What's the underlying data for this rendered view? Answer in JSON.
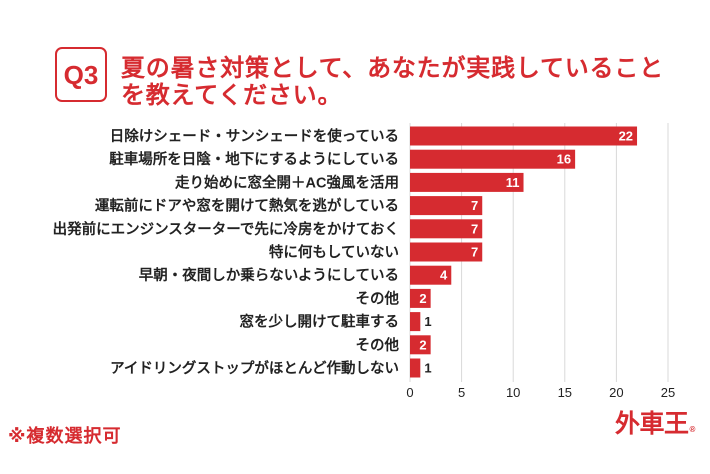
{
  "header": {
    "question_number": "Q3",
    "title_lines": [
      "夏の暑さ対策として、あなたが実践していること",
      "を教えてください。"
    ]
  },
  "chart_data": {
    "type": "bar",
    "orientation": "horizontal",
    "categories": [
      "日除けシェード・サンシェードを使っている",
      "駐車場所を日陰・地下にするようにしている",
      "走り始めに窓全開＋AC強風を活用",
      "運転前にドアや窓を開けて熱気を逃がしている",
      "出発前にエンジンスターターで先に冷房をかけておく",
      "特に何もしていない",
      "早朝・夜間しか乗らないようにしている",
      "その他",
      "窓を少し開けて駐車する",
      "その他",
      "アイドリングストップがほとんど作動しない"
    ],
    "values": [
      22,
      16,
      11,
      7,
      7,
      7,
      4,
      2,
      1,
      2,
      1
    ],
    "xlim": [
      0,
      25
    ],
    "xticks": [
      0,
      5,
      10,
      15,
      20,
      25
    ],
    "grid": true
  },
  "footnote": "※複数選択可",
  "logo": {
    "text": "外車王",
    "mark": "®"
  },
  "colors": {
    "accent": "#d62b30",
    "text": "#222222",
    "grid": "#d9d9d9",
    "on_bar": "#ffffff"
  }
}
